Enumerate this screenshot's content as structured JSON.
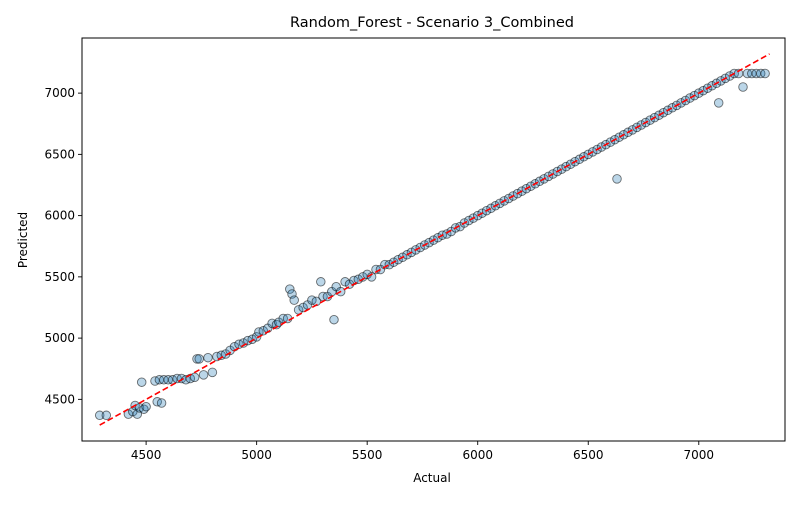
{
  "chart_data": {
    "type": "scatter",
    "title": "Random_Forest - Scenario 3_Combined",
    "xlabel": "Actual",
    "ylabel": "Predicted",
    "xlim": [
      4210,
      7390
    ],
    "ylim": [
      4160,
      7450
    ],
    "xticks": [
      4500,
      5000,
      5500,
      6000,
      6500,
      7000
    ],
    "yticks": [
      4500,
      5000,
      5500,
      6000,
      6500,
      7000
    ],
    "grid": false,
    "legend": "none",
    "point_color": "#1f77b4",
    "point_edge_color": "#000000",
    "point_alpha": 0.3,
    "reference_line": {
      "style": "dashed",
      "color": "#ff0000",
      "x": [
        4290,
        7320
      ],
      "y": [
        4290,
        7320
      ]
    },
    "series": [
      {
        "x": [
          4290,
          4320,
          4420,
          4440,
          4450,
          4460,
          4470,
          4480,
          4490,
          4500,
          4540,
          4550,
          4560,
          4570,
          4580,
          4600,
          4620,
          4640,
          4660,
          4680,
          4700,
          4720,
          4730,
          4740,
          4760,
          4780,
          4800,
          4820,
          4840,
          4860,
          4880,
          4900,
          4920,
          4940,
          4960,
          4980,
          5000,
          5010,
          5030,
          5050,
          5070,
          5090,
          5100,
          5120,
          5140,
          5150,
          5160,
          5170,
          5190,
          5210,
          5230,
          5250,
          5270,
          5290,
          5300,
          5320,
          5340,
          5350,
          5360,
          5380,
          5400,
          5420,
          5440,
          5460,
          5480,
          5500,
          5520,
          5540,
          5560,
          5580,
          5600,
          5620,
          5640,
          5660,
          5680,
          5700,
          5720,
          5740,
          5760,
          5780,
          5800,
          5820,
          5840,
          5860,
          5880,
          5900,
          5920,
          5940,
          5960,
          5980,
          6000,
          6020,
          6040,
          6060,
          6080,
          6100,
          6120,
          6140,
          6160,
          6180,
          6200,
          6220,
          6240,
          6260,
          6280,
          6300,
          6320,
          6340,
          6360,
          6380,
          6400,
          6420,
          6440,
          6460,
          6480,
          6500,
          6520,
          6540,
          6560,
          6580,
          6600,
          6620,
          6630,
          6640,
          6660,
          6680,
          6700,
          6720,
          6740,
          6760,
          6780,
          6800,
          6820,
          6840,
          6860,
          6880,
          6900,
          6920,
          6940,
          6960,
          6980,
          7000,
          7020,
          7040,
          7060,
          7080,
          7090,
          7100,
          7120,
          7140,
          7160,
          7180,
          7200,
          7220,
          7240,
          7260,
          7280,
          7300
        ],
        "y": [
          4370,
          4370,
          4380,
          4400,
          4450,
          4380,
          4430,
          4640,
          4420,
          4440,
          4650,
          4480,
          4660,
          4470,
          4660,
          4660,
          4660,
          4670,
          4670,
          4660,
          4670,
          4680,
          4830,
          4830,
          4700,
          4840,
          4720,
          4850,
          4860,
          4870,
          4900,
          4930,
          4950,
          4960,
          4980,
          4990,
          5010,
          5050,
          5060,
          5080,
          5120,
          5110,
          5130,
          5160,
          5160,
          5400,
          5360,
          5310,
          5230,
          5250,
          5270,
          5310,
          5300,
          5460,
          5340,
          5340,
          5380,
          5150,
          5420,
          5380,
          5460,
          5440,
          5470,
          5480,
          5500,
          5520,
          5500,
          5560,
          5560,
          5600,
          5600,
          5620,
          5640,
          5660,
          5680,
          5700,
          5720,
          5740,
          5760,
          5780,
          5800,
          5820,
          5840,
          5850,
          5870,
          5900,
          5910,
          5940,
          5960,
          5980,
          6000,
          6020,
          6040,
          6060,
          6080,
          6100,
          6120,
          6140,
          6160,
          6180,
          6200,
          6220,
          6240,
          6260,
          6280,
          6300,
          6320,
          6340,
          6360,
          6380,
          6400,
          6420,
          6440,
          6460,
          6480,
          6500,
          6520,
          6540,
          6560,
          6580,
          6600,
          6620,
          6300,
          6640,
          6660,
          6680,
          6700,
          6720,
          6740,
          6760,
          6780,
          6800,
          6820,
          6840,
          6860,
          6880,
          6900,
          6920,
          6940,
          6960,
          6980,
          7000,
          7020,
          7040,
          7060,
          7080,
          6920,
          7100,
          7120,
          7140,
          7160,
          7160,
          7050,
          7160,
          7160,
          7160,
          7160,
          7160
        ]
      }
    ]
  }
}
